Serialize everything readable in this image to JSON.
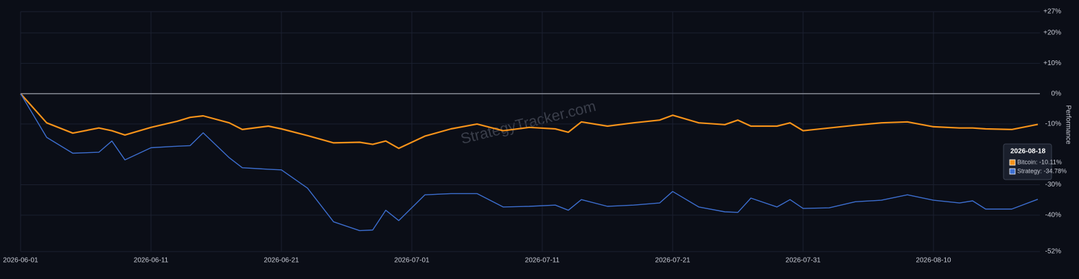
{
  "chart_data": {
    "type": "line",
    "watermark": "StrategyTracker.com",
    "y_label": "Performance",
    "x": [
      "2026-06-01",
      "2026-06-03",
      "2026-06-05",
      "2026-06-07",
      "2026-06-08",
      "2026-06-09",
      "2026-06-11",
      "2026-06-13",
      "2026-06-14",
      "2026-06-15",
      "2026-06-17",
      "2026-06-18",
      "2026-06-20",
      "2026-06-21",
      "2026-06-23",
      "2026-06-25",
      "2026-06-27",
      "2026-06-28",
      "2026-06-29",
      "2026-06-30",
      "2026-07-02",
      "2026-07-04",
      "2026-07-06",
      "2026-07-08",
      "2026-07-10",
      "2026-07-12",
      "2026-07-13",
      "2026-07-14",
      "2026-07-16",
      "2026-07-18",
      "2026-07-20",
      "2026-07-21",
      "2026-07-23",
      "2026-07-25",
      "2026-07-26",
      "2026-07-27",
      "2026-07-29",
      "2026-07-30",
      "2026-07-31",
      "2026-08-02",
      "2026-08-04",
      "2026-08-06",
      "2026-08-08",
      "2026-08-10",
      "2026-08-12",
      "2026-08-13",
      "2026-08-14",
      "2026-08-16",
      "2026-08-18"
    ],
    "series": [
      {
        "name": "Bitcoin",
        "color": "#f7931a",
        "values": [
          0,
          -9.6,
          -13,
          -11.3,
          -12.2,
          -13.6,
          -11.1,
          -9.1,
          -7.8,
          -7.3,
          -9.6,
          -11.8,
          -10.7,
          -11.6,
          -13.8,
          -16.2,
          -16,
          -16.7,
          -15.6,
          -18,
          -14,
          -11.6,
          -10,
          -12.2,
          -11.1,
          -11.6,
          -12.7,
          -9.3,
          -10.7,
          -9.6,
          -8.7,
          -7.1,
          -9.6,
          -10.2,
          -8.7,
          -10.7,
          -10.7,
          -9.6,
          -12.2,
          -11.3,
          -10.4,
          -9.6,
          -9.3,
          -10.9,
          -11.3,
          -11.3,
          -11.6,
          -11.8,
          -10.11
        ]
      },
      {
        "name": "Strategy",
        "color": "#3d6fd1",
        "values": [
          0,
          -14.4,
          -19.6,
          -19.3,
          -15.6,
          -21.8,
          -17.8,
          -17.3,
          -17.1,
          -12.9,
          -21.1,
          -24.4,
          -24.9,
          -25.1,
          -31.1,
          -42.2,
          -45.1,
          -44.9,
          -38.4,
          -41.8,
          -33.3,
          -32.9,
          -32.9,
          -37.3,
          -37.1,
          -36.7,
          -38.4,
          -34.9,
          -37.1,
          -36.7,
          -36,
          -32.2,
          -37.3,
          -38.9,
          -39.1,
          -34.4,
          -37.3,
          -34.9,
          -37.8,
          -37.6,
          -35.6,
          -35.1,
          -33.3,
          -35.1,
          -36,
          -35.3,
          -38,
          -38,
          -34.78
        ]
      }
    ],
    "xlim": [
      "2026-06-01",
      "2026-08-18"
    ],
    "xticks": [
      "2026-06-01",
      "2026-06-11",
      "2026-06-21",
      "2026-07-01",
      "2026-07-11",
      "2026-07-21",
      "2026-07-31",
      "2026-08-10"
    ],
    "ylim": [
      -52,
      27
    ],
    "yticks": [
      {
        "value": 27,
        "label": "+27%"
      },
      {
        "value": 20,
        "label": "+20%"
      },
      {
        "value": 10,
        "label": "+10%"
      },
      {
        "value": 0,
        "label": "0%"
      },
      {
        "value": -10,
        "label": "-10%"
      },
      {
        "value": -30,
        "label": "-30%"
      },
      {
        "value": -40,
        "label": "-40%"
      },
      {
        "value": -52,
        "label": "-52%"
      }
    ],
    "grid": true,
    "tooltip": {
      "date": "2026-08-18",
      "lines": [
        "Bitcoin: -10.11%",
        "Strategy: -34.78%"
      ]
    }
  }
}
